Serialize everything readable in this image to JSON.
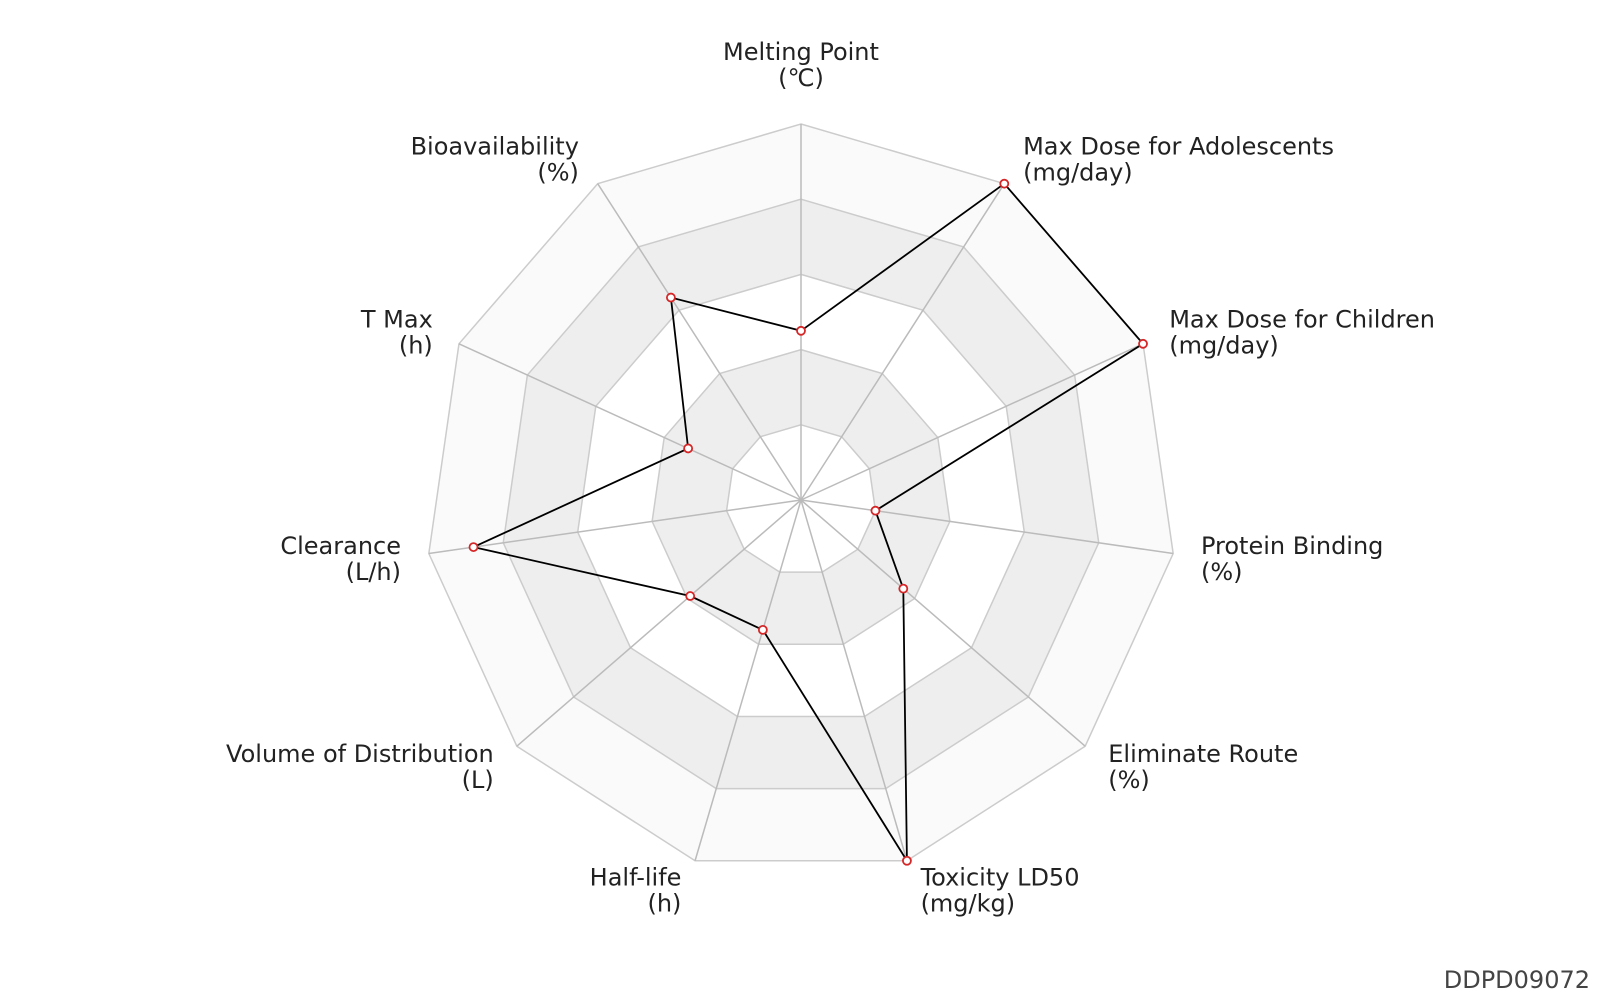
{
  "chart_data": {
    "type": "radar",
    "categories": [
      "Melting Point",
      "Max Dose for Adolescents",
      "Max Dose for Children",
      "Protein Binding",
      "Eliminate Route",
      "Toxicity LD50",
      "Half-life",
      "Volume of Distribution",
      "Clearance",
      "T Max",
      "Bioavailability"
    ],
    "units": [
      "(℃)",
      "(mg/day)",
      "(mg/day)",
      "(%)",
      "(%)",
      "(mg/kg)",
      "(h)",
      "(L)",
      "(L/h)",
      "(h)",
      "(%)"
    ],
    "values": [
      0.45,
      1.0,
      1.0,
      0.2,
      0.36,
      1.0,
      0.36,
      0.39,
      0.88,
      0.33,
      0.64
    ],
    "color": "#000000",
    "marker_color": "#d62728",
    "rlim": [
      0,
      1
    ],
    "rticks": [
      0.2,
      0.4,
      0.6,
      0.8,
      1.0
    ],
    "band_colors": [
      "#ffffff",
      "#eeeeee",
      "#ffffff",
      "#eeeeee",
      "#fafafa"
    ],
    "grid": true
  },
  "footer": "DDPD09072"
}
